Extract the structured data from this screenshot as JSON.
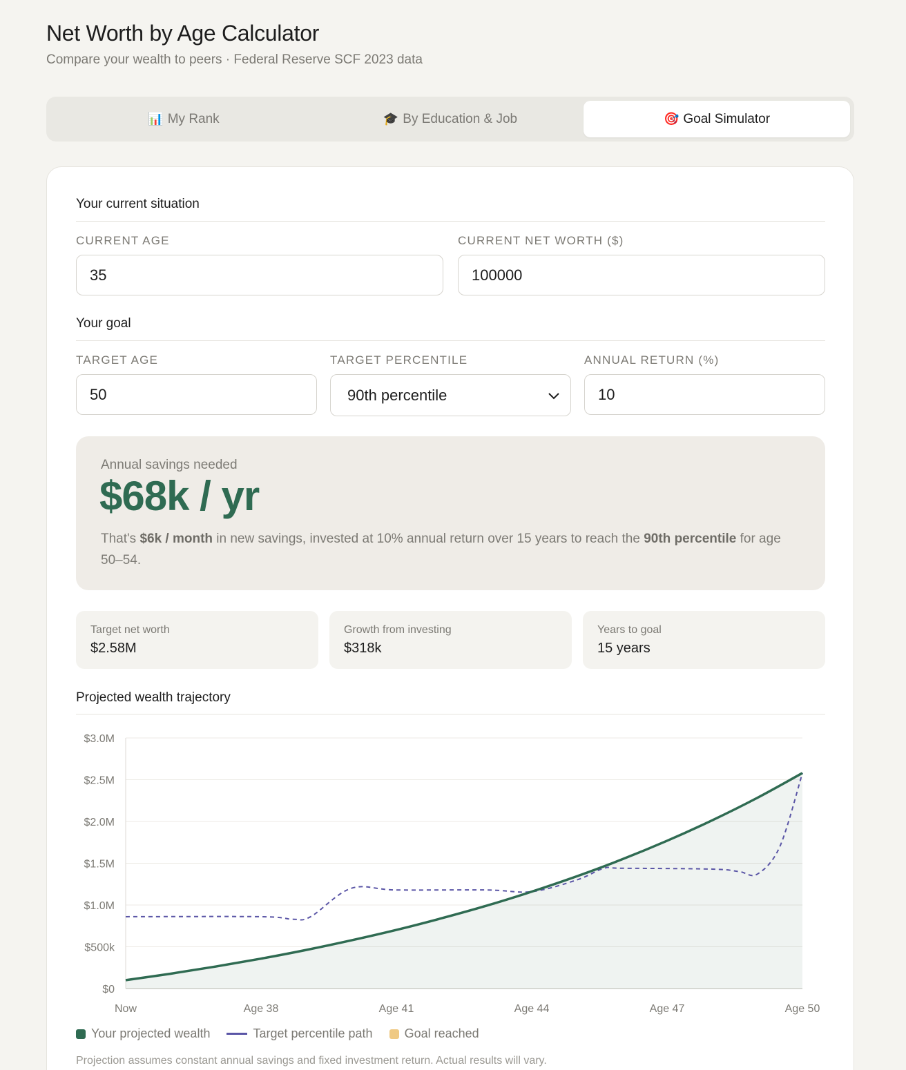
{
  "header": {
    "title": "Net Worth by Age Calculator",
    "subtitle": "Compare your wealth to peers · Federal Reserve SCF 2023 data"
  },
  "tabs": [
    {
      "icon": "📊",
      "label": "My Rank"
    },
    {
      "icon": "🎓",
      "label": "By Education & Job"
    },
    {
      "icon": "🎯",
      "label": "Goal Simulator"
    }
  ],
  "current": {
    "section_title": "Your current situation",
    "age_label": "CURRENT AGE",
    "age_value": "35",
    "networth_label": "CURRENT NET WORTH ($)",
    "networth_value": "100000"
  },
  "goal": {
    "section_title": "Your goal",
    "target_age_label": "TARGET AGE",
    "target_age_value": "50",
    "percentile_label": "TARGET PERCENTILE",
    "percentile_value": "90th percentile",
    "return_label": "ANNUAL RETURN (%)",
    "return_value": "10"
  },
  "result": {
    "label": "Annual savings needed",
    "value": "$68k / yr",
    "note_1": "That's ",
    "note_monthly": "$6k / month",
    "note_2": " in new savings, invested at 10% annual return over 15 years to reach the ",
    "note_percentile": "90th percentile",
    "note_3": " for age 50–54."
  },
  "stats": [
    {
      "label": "Target net worth",
      "value": "$2.58M"
    },
    {
      "label": "Growth from investing",
      "value": "$318k"
    },
    {
      "label": "Years to goal",
      "value": "15 years"
    }
  ],
  "chart_section": {
    "title": "Projected wealth trajectory"
  },
  "chart_data": {
    "type": "line",
    "y_ticks": [
      "$0",
      "$500k",
      "$1.0M",
      "$1.5M",
      "$2.0M",
      "$2.5M",
      "$3.0M"
    ],
    "ylim": [
      0,
      3000000
    ],
    "x_ticks": [
      "Now",
      "Age 38",
      "Age 41",
      "Age 44",
      "Age 47",
      "Age 50"
    ],
    "x_ages": [
      35,
      36,
      37,
      38,
      39,
      40,
      41,
      42,
      43,
      44,
      45,
      46,
      47,
      48,
      49,
      50
    ],
    "xlim": [
      35,
      50
    ],
    "series": [
      {
        "name": "Your projected wealth",
        "color": "#2f6b52",
        "style": "solid-area",
        "values": [
          100000,
          178000,
          264000,
          358000,
          462000,
          577000,
          702000,
          841000,
          992000,
          1160000,
          1344000,
          1546000,
          1769000,
          2014000,
          2283000,
          2580000
        ]
      },
      {
        "name": "Target percentile path",
        "color": "#5a55a6",
        "style": "dashed",
        "points": [
          [
            35,
            860000
          ],
          [
            38,
            860000
          ],
          [
            38.7,
            830000
          ],
          [
            39.1,
            860000
          ],
          [
            40,
            1200000
          ],
          [
            41,
            1180000
          ],
          [
            43,
            1180000
          ],
          [
            44,
            1160000
          ],
          [
            45,
            1300000
          ],
          [
            45.6,
            1440000
          ],
          [
            46,
            1440000
          ],
          [
            48,
            1430000
          ],
          [
            48.6,
            1400000
          ],
          [
            49,
            1370000
          ],
          [
            49.5,
            1700000
          ],
          [
            50,
            2580000
          ]
        ]
      }
    ],
    "legend": [
      {
        "label": "Your projected wealth",
        "color": "#2f6b52",
        "shape": "square"
      },
      {
        "label": "Target percentile path",
        "color": "#5a55a6",
        "shape": "line"
      },
      {
        "label": "Goal reached",
        "color": "#efc983",
        "shape": "square"
      }
    ],
    "grid": true
  },
  "footnote": "Projection assumes constant annual savings and fixed investment return. Actual results will vary."
}
